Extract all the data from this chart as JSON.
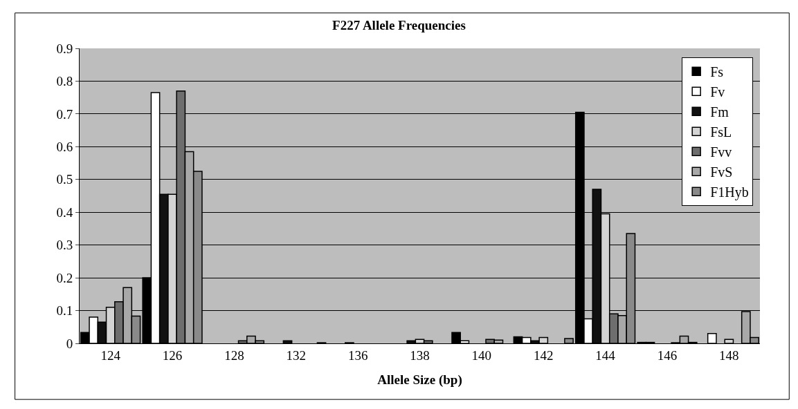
{
  "chart_data": {
    "type": "bar",
    "title": "F227 Allele Frequencies",
    "xlabel": "Allele Size (bp)",
    "categories": [
      "124",
      "126",
      "128",
      "132",
      "136",
      "138",
      "140",
      "142",
      "144",
      "146",
      "148"
    ],
    "series": [
      {
        "name": "Fs",
        "color": "#000000",
        "values": [
          0.033,
          0.2,
          0,
          0,
          0,
          0,
          0.033,
          0.02,
          0.705,
          0.003,
          0
        ]
      },
      {
        "name": "Fv",
        "color": "#ffffff",
        "values": [
          0.08,
          0.765,
          0,
          0,
          0,
          0,
          0.008,
          0.018,
          0.075,
          0.003,
          0.03
        ]
      },
      {
        "name": "Fm",
        "color": "#111111",
        "values": [
          0.065,
          0.455,
          0,
          0.008,
          0.002,
          0.008,
          0,
          0.008,
          0.47,
          0,
          0
        ]
      },
      {
        "name": "FsL",
        "color": "#d4d4d4",
        "values": [
          0.11,
          0.455,
          0,
          0,
          0,
          0.012,
          0,
          0.018,
          0.395,
          0,
          0.012
        ]
      },
      {
        "name": "Fvv",
        "color": "#6e6e6e",
        "values": [
          0.127,
          0.77,
          0.008,
          0,
          0,
          0.008,
          0.012,
          0,
          0.09,
          0.002,
          0
        ]
      },
      {
        "name": "FvS",
        "color": "#a8a8a8",
        "values": [
          0.17,
          0.585,
          0.022,
          0,
          0,
          0,
          0.01,
          null,
          0.085,
          0.022,
          0.097
        ]
      },
      {
        "name": "F1Hyb",
        "color": "#8a8a8a",
        "values": [
          0.083,
          0.525,
          0.008,
          0.002,
          null,
          0,
          0,
          0.015,
          0.335,
          0.003,
          0.018
        ]
      }
    ],
    "ylim": [
      0,
      0.9
    ],
    "yticks": [
      0,
      0.1,
      0.2,
      0.3,
      0.4,
      0.5,
      0.6,
      0.7,
      0.8,
      0.9
    ],
    "grid": "y",
    "legend": "top right"
  }
}
